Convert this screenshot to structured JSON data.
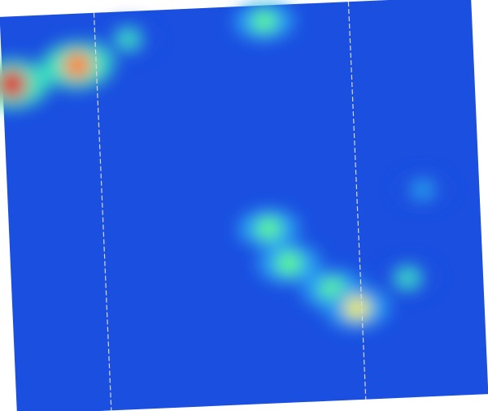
{
  "chart_data": {
    "type": "heatmap",
    "title": "",
    "xlabel": "",
    "ylabel": "",
    "colormap": [
      "#0a1fc0",
      "#1a4fe0",
      "#2aa0f0",
      "#40e0c0",
      "#60ff80",
      "#f0f040",
      "#ff8020",
      "#e01010"
    ],
    "background_value": 0.12,
    "hotspots": [
      {
        "x": 0.02,
        "y": 0.17,
        "value": 1.0
      },
      {
        "x": 0.16,
        "y": 0.13,
        "value": 0.9
      },
      {
        "x": 0.27,
        "y": 0.07,
        "value": 0.45
      },
      {
        "x": 0.56,
        "y": 0.04,
        "value": 0.5
      },
      {
        "x": 0.55,
        "y": 0.56,
        "value": 0.55
      },
      {
        "x": 0.59,
        "y": 0.65,
        "value": 0.6
      },
      {
        "x": 0.68,
        "y": 0.72,
        "value": 0.55
      },
      {
        "x": 0.73,
        "y": 0.77,
        "value": 0.65
      },
      {
        "x": 0.84,
        "y": 0.7,
        "value": 0.45
      },
      {
        "x": 0.88,
        "y": 0.48,
        "value": 0.35
      }
    ],
    "vertical_markers": [
      0.2,
      0.74
    ]
  }
}
